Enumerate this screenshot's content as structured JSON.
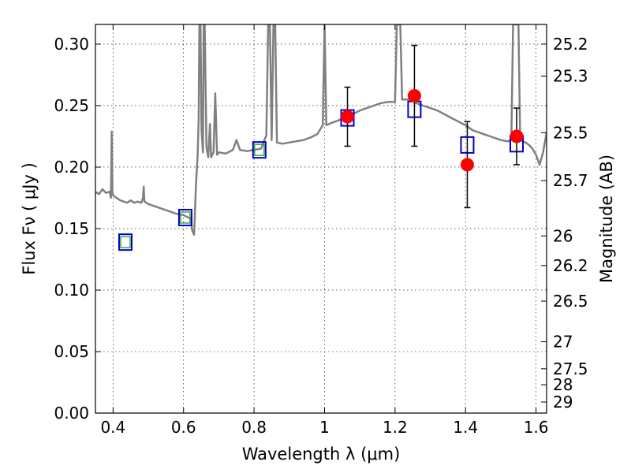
{
  "chart_data": {
    "type": "scatter",
    "xlabel": "Wavelength  λ (μm)",
    "ylabel": "Flux  Fν  ( μJy )",
    "y2label": "Magnitude (AB)",
    "xlim": [
      0.35,
      1.63
    ],
    "ylim": [
      0.0,
      0.316
    ],
    "grid": true,
    "x_ticks": [
      0.4,
      0.6,
      0.8,
      1.0,
      1.2,
      1.4,
      1.6
    ],
    "x_tick_labels": [
      "0.4",
      "0.6",
      "0.8",
      "1",
      "1.2",
      "1.4",
      "1.6"
    ],
    "y_ticks": [
      0.0,
      0.05,
      0.1,
      0.15,
      0.2,
      0.25,
      0.3
    ],
    "y_tick_labels": [
      "0.00",
      "0.05",
      "0.10",
      "0.15",
      "0.20",
      "0.25",
      "0.30"
    ],
    "mag_ticks": [
      {
        "label": "25.2",
        "flux": 0.3
      },
      {
        "label": "25.3",
        "flux": 0.274
      },
      {
        "label": "25.5",
        "flux": 0.228
      },
      {
        "label": "25.7",
        "flux": 0.189
      },
      {
        "label": "26",
        "flux": 0.144
      },
      {
        "label": "26.2",
        "flux": 0.12
      },
      {
        "label": "26.5",
        "flux": 0.091
      },
      {
        "label": "27",
        "flux": 0.058
      },
      {
        "label": "27.5",
        "flux": 0.036
      },
      {
        "label": "28",
        "flux": 0.023
      },
      {
        "label": "29",
        "flux": 0.009
      }
    ],
    "series": [
      {
        "kind": "line",
        "color": "#808080",
        "points": [
          [
            0.35,
            0.18
          ],
          [
            0.36,
            0.178
          ],
          [
            0.37,
            0.182
          ],
          [
            0.38,
            0.179
          ],
          [
            0.39,
            0.18
          ],
          [
            0.394,
            0.175
          ],
          [
            0.396,
            0.229
          ],
          [
            0.398,
            0.18
          ],
          [
            0.4,
            0.177
          ],
          [
            0.41,
            0.175
          ],
          [
            0.42,
            0.173
          ],
          [
            0.43,
            0.172
          ],
          [
            0.44,
            0.171
          ],
          [
            0.45,
            0.173
          ],
          [
            0.46,
            0.171
          ],
          [
            0.47,
            0.172
          ],
          [
            0.48,
            0.171
          ],
          [
            0.485,
            0.175
          ],
          [
            0.487,
            0.184
          ],
          [
            0.489,
            0.172
          ],
          [
            0.5,
            0.17
          ],
          [
            0.52,
            0.168
          ],
          [
            0.54,
            0.166
          ],
          [
            0.56,
            0.164
          ],
          [
            0.58,
            0.162
          ],
          [
            0.6,
            0.161
          ],
          [
            0.62,
            0.158
          ],
          [
            0.625,
            0.148
          ],
          [
            0.63,
            0.145
          ],
          [
            0.632,
            0.16
          ],
          [
            0.635,
            0.185
          ],
          [
            0.64,
            0.21
          ],
          [
            0.643,
            0.24
          ],
          [
            0.645,
            0.316
          ],
          [
            0.648,
            0.316
          ],
          [
            0.651,
            0.23
          ],
          [
            0.655,
            0.212
          ],
          [
            0.657,
            0.316
          ],
          [
            0.66,
            0.316
          ],
          [
            0.665,
            0.216
          ],
          [
            0.67,
            0.208
          ],
          [
            0.675,
            0.235
          ],
          [
            0.678,
            0.208
          ],
          [
            0.685,
            0.212
          ],
          [
            0.69,
            0.26
          ],
          [
            0.695,
            0.21
          ],
          [
            0.7,
            0.212
          ],
          [
            0.72,
            0.211
          ],
          [
            0.74,
            0.214
          ],
          [
            0.75,
            0.222
          ],
          [
            0.76,
            0.214
          ],
          [
            0.78,
            0.213
          ],
          [
            0.8,
            0.214
          ],
          [
            0.82,
            0.215
          ],
          [
            0.835,
            0.226
          ],
          [
            0.84,
            0.316
          ],
          [
            0.845,
            0.316
          ],
          [
            0.85,
            0.222
          ],
          [
            0.855,
            0.316
          ],
          [
            0.86,
            0.316
          ],
          [
            0.865,
            0.22
          ],
          [
            0.88,
            0.219
          ],
          [
            0.9,
            0.22
          ],
          [
            0.92,
            0.221
          ],
          [
            0.94,
            0.222
          ],
          [
            0.96,
            0.224
          ],
          [
            0.98,
            0.227
          ],
          [
            0.995,
            0.234
          ],
          [
            1.0,
            0.316
          ],
          [
            1.005,
            0.234
          ],
          [
            1.02,
            0.236
          ],
          [
            1.04,
            0.238
          ],
          [
            1.06,
            0.241
          ],
          [
            1.08,
            0.243
          ],
          [
            1.1,
            0.246
          ],
          [
            1.12,
            0.248
          ],
          [
            1.14,
            0.25
          ],
          [
            1.16,
            0.252
          ],
          [
            1.18,
            0.253
          ],
          [
            1.2,
            0.253
          ],
          [
            1.205,
            0.316
          ],
          [
            1.215,
            0.316
          ],
          [
            1.22,
            0.255
          ],
          [
            1.24,
            0.255
          ],
          [
            1.25,
            0.254
          ],
          [
            1.26,
            0.252
          ],
          [
            1.28,
            0.25
          ],
          [
            1.3,
            0.248
          ],
          [
            1.32,
            0.246
          ],
          [
            1.34,
            0.243
          ],
          [
            1.36,
            0.24
          ],
          [
            1.38,
            0.237
          ],
          [
            1.4,
            0.234
          ],
          [
            1.42,
            0.23
          ],
          [
            1.44,
            0.228
          ],
          [
            1.46,
            0.226
          ],
          [
            1.48,
            0.224
          ],
          [
            1.5,
            0.222
          ],
          [
            1.52,
            0.221
          ],
          [
            1.53,
            0.222
          ],
          [
            1.535,
            0.316
          ],
          [
            1.55,
            0.316
          ],
          [
            1.555,
            0.222
          ],
          [
            1.57,
            0.22
          ],
          [
            1.58,
            0.218
          ],
          [
            1.59,
            0.215
          ],
          [
            1.6,
            0.21
          ],
          [
            1.61,
            0.202
          ],
          [
            1.62,
            0.212
          ],
          [
            1.63,
            0.228
          ]
        ]
      },
      {
        "kind": "marker-square-blue",
        "color": "#0000cc",
        "x": [
          0.435,
          0.605,
          0.815,
          1.065,
          1.255,
          1.405,
          1.545
        ],
        "y": [
          0.139,
          0.159,
          0.214,
          0.24,
          0.247,
          0.218,
          0.219
        ]
      },
      {
        "kind": "marker-square-green",
        "color": "#2ca02c",
        "x": [
          0.435,
          0.605,
          0.815
        ],
        "y": [
          0.139,
          0.159,
          0.214
        ]
      },
      {
        "kind": "marker-circle-red-errorbar",
        "color": "#ff0000",
        "x": [
          1.065,
          1.255,
          1.405,
          1.545
        ],
        "y": [
          0.241,
          0.258,
          0.202,
          0.225
        ],
        "err": [
          0.024,
          0.041,
          0.035,
          0.023
        ]
      }
    ]
  }
}
